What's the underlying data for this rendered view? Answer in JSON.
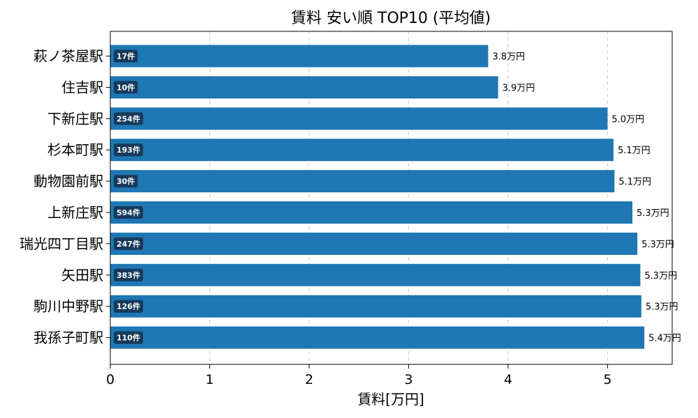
{
  "chart_data": {
    "type": "bar",
    "orientation": "horizontal",
    "title": "賃料 安い順 TOP10 (平均値)",
    "xlabel": "賃料[万円]",
    "ylabel": "",
    "xlim": [
      0,
      5.65
    ],
    "xticks": [
      "0",
      "1",
      "2",
      "3",
      "4",
      "5"
    ],
    "grid": "x",
    "bar_color": "#1f77b4",
    "count_badge_color": "#163a5a",
    "categories": [
      "萩ノ茶屋駅",
      "住吉駅",
      "下新庄駅",
      "杉本町駅",
      "動物園前駅",
      "上新庄駅",
      "瑞光四丁目駅",
      "矢田駅",
      "駒川中野駅",
      "我孫子町駅"
    ],
    "values": [
      3.8,
      3.9,
      5.0,
      5.06,
      5.07,
      5.25,
      5.3,
      5.33,
      5.34,
      5.37
    ],
    "value_labels": [
      "3.8万円",
      "3.9万円",
      "5.0万円",
      "5.1万円",
      "5.1万円",
      "5.3万円",
      "5.3万円",
      "5.3万円",
      "5.3万円",
      "5.4万円"
    ],
    "count_labels": [
      "17件",
      "10件",
      "254件",
      "193件",
      "30件",
      "594件",
      "247件",
      "383件",
      "126件",
      "110件"
    ]
  }
}
